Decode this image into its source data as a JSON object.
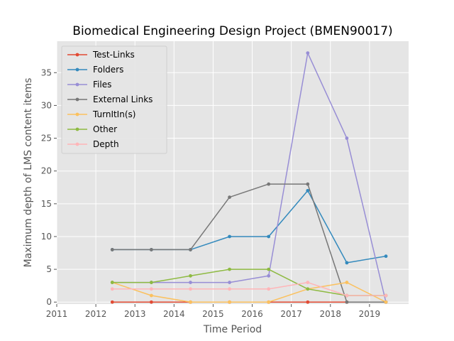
{
  "chart_data": {
    "type": "line",
    "title": "Biomedical Engineering Design Project (BMEN90017)",
    "xlabel": "Time Period",
    "ylabel": "Maximum depth of LMS content items",
    "xlim": [
      2011,
      2020
    ],
    "ylim": [
      -0.3,
      39.8
    ],
    "xticks": [
      2011,
      2012,
      2013,
      2014,
      2015,
      2016,
      2017,
      2018,
      2019
    ],
    "yticks": [
      0,
      5,
      10,
      15,
      20,
      25,
      30,
      35
    ],
    "grid": true,
    "legend_position": "top-left",
    "x": [
      2012.42,
      2013.42,
      2014.42,
      2015.42,
      2016.42,
      2017.42,
      2018.42,
      2019.42
    ],
    "series": [
      {
        "name": "Test-Links",
        "color": "#e24a33",
        "values": [
          0,
          0,
          0,
          0,
          0,
          0,
          0,
          0
        ]
      },
      {
        "name": "Folders",
        "color": "#348abd",
        "values": [
          8,
          8,
          8,
          10,
          10,
          17,
          6,
          7
        ]
      },
      {
        "name": "Files",
        "color": "#988ed5",
        "values": [
          3,
          3,
          3,
          3,
          4,
          38,
          25,
          0
        ]
      },
      {
        "name": "External Links",
        "color": "#777777",
        "values": [
          8,
          8,
          8,
          16,
          18,
          18,
          0,
          0
        ]
      },
      {
        "name": "TurnItIn(s)",
        "color": "#fbc15e",
        "values": [
          3,
          1,
          0,
          0,
          0,
          2,
          3,
          0
        ]
      },
      {
        "name": "Other",
        "color": "#8eba42",
        "values": [
          3,
          3,
          4,
          5,
          5,
          2,
          1,
          1
        ]
      },
      {
        "name": "Depth",
        "color": "#ffb5b8",
        "values": [
          2,
          2,
          2,
          2,
          2,
          3,
          1,
          1
        ]
      }
    ]
  }
}
